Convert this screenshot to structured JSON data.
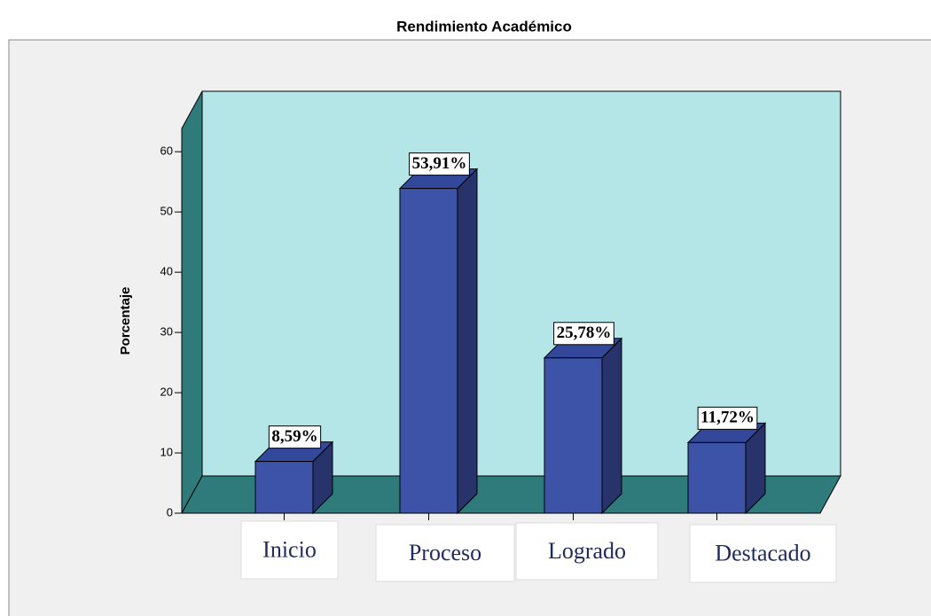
{
  "chart_data": {
    "type": "bar3d",
    "title": "Rendimiento Académico",
    "ylabel": "Porcentaje",
    "categories": [
      "Inicio",
      "Proceso",
      "Logrado",
      "Destacado"
    ],
    "values": [
      8.59,
      53.91,
      25.78,
      11.72
    ],
    "value_labels": [
      "8,59%",
      "53,91%",
      "25,78%",
      "11,72%"
    ],
    "color": "#3c53a8",
    "ylim": [
      0,
      64
    ],
    "yticks": [
      0,
      10,
      20,
      30,
      40,
      50,
      60
    ],
    "grid": false
  }
}
